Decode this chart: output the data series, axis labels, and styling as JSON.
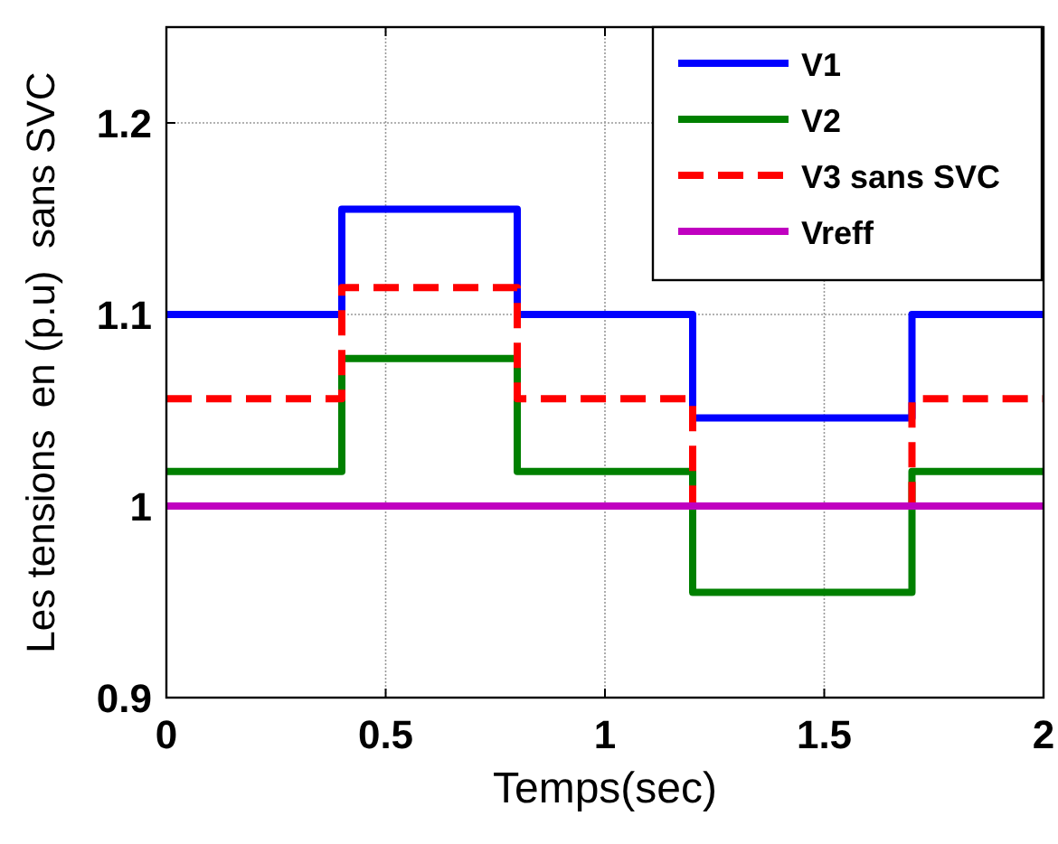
{
  "chart_data": {
    "type": "step",
    "xlabel": "Temps(sec)",
    "ylabel": "Les tensions  en (p.u)  sans SVC",
    "x": [
      0,
      0.4,
      0.8,
      1.2,
      1.7,
      2
    ],
    "series": [
      {
        "name": "V1",
        "color": "#0000ff",
        "values": [
          1.1,
          1.155,
          1.1,
          1.046,
          1.1,
          1.1
        ]
      },
      {
        "name": "V2",
        "color": "#008000",
        "values": [
          1.018,
          1.077,
          1.018,
          0.955,
          1.018,
          1.018
        ]
      },
      {
        "name": "V3 sans SVC",
        "color": "#ff0000",
        "values": [
          1.056,
          1.114,
          1.056,
          1.0,
          1.056,
          1.056
        ],
        "line_style": "dashed"
      },
      {
        "name": "Vreff",
        "color": "#c000c0",
        "values": [
          1,
          1,
          1,
          1,
          1,
          1
        ]
      }
    ],
    "xlim": [
      0,
      2
    ],
    "ylim": [
      0.9,
      1.25
    ],
    "xticks": [
      0,
      0.5,
      1,
      1.5,
      2
    ],
    "yticks": [
      0.9,
      1,
      1.1,
      1.2
    ],
    "grid": true,
    "legend": "top right"
  }
}
